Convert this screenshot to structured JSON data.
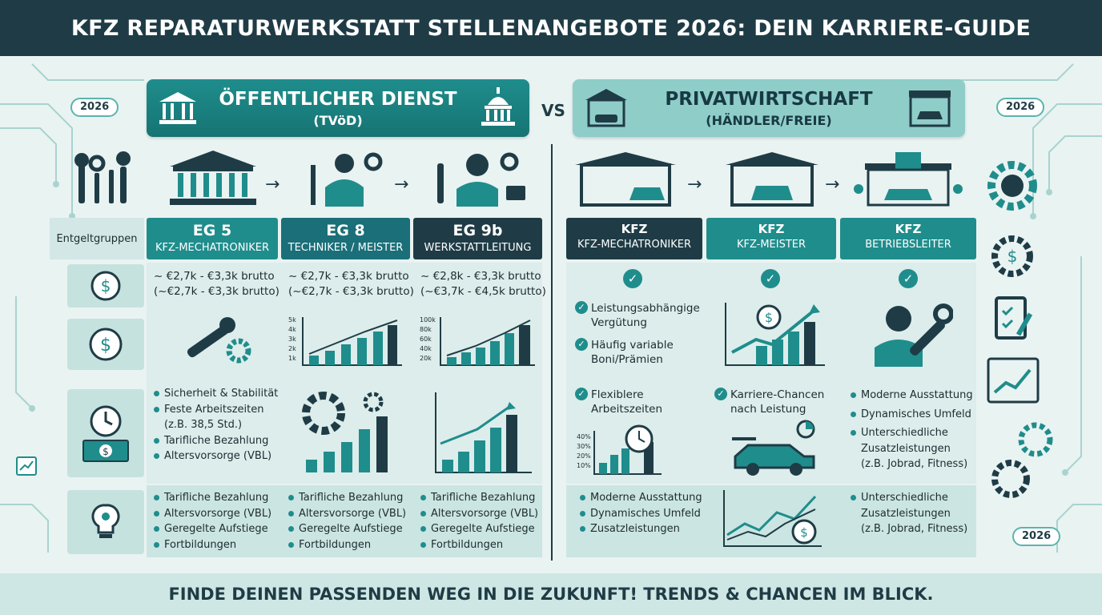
{
  "title": "KFZ REPARATURWERKSTATT STELLENANGEBOTE 2026: DEIN KARRIERE-GUIDE",
  "footer": "FINDE DEINEN PASSENDEN WEG IN DIE ZUKUNFT! TRENDS & CHANCEN IM BLICK.",
  "vs": "VS",
  "year_badge": "2026",
  "left_header": {
    "title": "ÖFFENTLICHER DIENST",
    "subtitle": "(TVöD)"
  },
  "right_header": {
    "title": "PRIVATWIRTSCHAFT",
    "subtitle": "(HÄNDLER/FREIE)"
  },
  "row_label": "Entgeltgruppen",
  "public_columns": [
    {
      "grade": "EG 5",
      "role": "KFZ-MECHATRONIKER",
      "salary1": "~ €2,7k - €3,3k brutto",
      "salary2": "(~€2,7k - €3,3k brutto)",
      "chart_ticks": [],
      "color": "#1f8d8c"
    },
    {
      "grade": "EG 8",
      "role": "TECHNIKER / MEISTER",
      "salary1": "~ €2,7k - €3,3k brutto",
      "salary2": "(~€2,7k - €3,3k brutto)",
      "chart_ticks": [
        "5k",
        "4k",
        "3k",
        "2k",
        "1k"
      ],
      "color": "#1a6f78"
    },
    {
      "grade": "EG 9b",
      "role": "WERKSTATTLEITUNG",
      "salary1": "~ €2,8k - €3,3k brutto",
      "salary2": "(~€3,7k - €4,5k brutto)",
      "chart_ticks": [
        "100k",
        "80k",
        "60k",
        "40k",
        "20k"
      ],
      "color": "#1f3c46"
    }
  ],
  "public_benefits": [
    "Sicherheit & Stabilität",
    "Feste Arbeitszeiten",
    "(z.B. 38,5 Std.)",
    "Tarifliche Bezahlung",
    "Altersvorsorge (VBL)"
  ],
  "public_bottom": [
    "Tarifliche Bezahlung",
    "Altersvorsorge (VBL)",
    "Geregelte Aufstiege",
    "Fortbildungen"
  ],
  "private_columns": [
    {
      "label": "KFZ",
      "role": "KFZ-MECHATRONIKER",
      "color": "#1f3c46"
    },
    {
      "label": "KFZ",
      "role": "KFZ-MEISTER",
      "color": "#1f8d8c"
    },
    {
      "label": "KFZ",
      "role": "BETRIEBSLEITER",
      "color": "#1f8d8c"
    }
  ],
  "private_c1_checks": [
    "Leistungsabhängige Vergütung",
    "Häufig variable Boni/Prämien"
  ],
  "private_c1_flex": "Flexiblere Arbeitszeiten",
  "private_c1_ticks": [
    "40%",
    "30%",
    "20%",
    "10%"
  ],
  "private_c2_check": "Karriere-Chancen nach Leistung",
  "private_c3_bullets": [
    "Moderne Ausstattung",
    "Dynamisches Umfeld",
    "Unterschiedliche Zusatzleistungen",
    "(z.B. Jobrad, Fitness)"
  ],
  "private_bottom_left": [
    "Moderne Ausstattung",
    "Dynamisches Umfeld",
    "Zusatzleistungen"
  ],
  "private_bottom_right": [
    "Unterschiedliche Zusatzleistungen",
    "(z.B. Jobrad, Fitness)"
  ],
  "colors": {
    "dark": "#1f3c46",
    "teal": "#1f8d8c",
    "light_teal": "#8fcdc9",
    "bg": "#e9f3f2"
  }
}
